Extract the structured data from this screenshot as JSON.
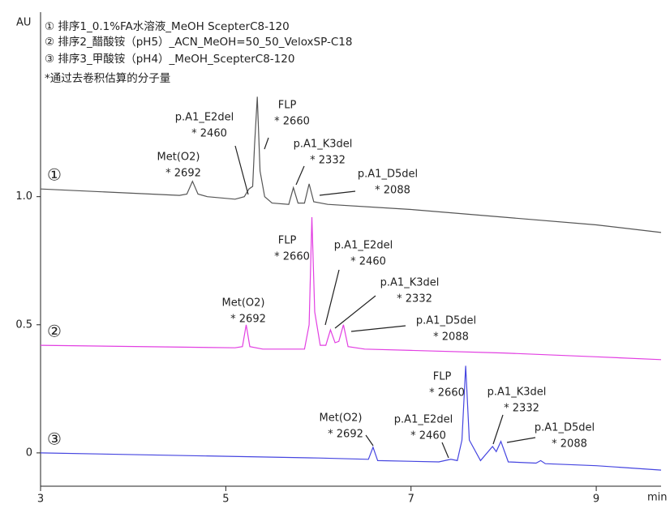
{
  "chart_data": {
    "type": "line",
    "y_label": "AU",
    "x_label": "min",
    "note": "*通过去卷积估算的分子量",
    "xlim": [
      3,
      9.7
    ],
    "ylim": [
      -0.13,
      1.72
    ],
    "xticks": [
      3,
      5,
      7,
      9
    ],
    "yticks": [
      0,
      0.5,
      {
        "value": 1,
        "label": "1.0"
      }
    ],
    "series": [
      {
        "name": "① 排序1_0.1%FA水溶液_MeOH ScepterC8-120",
        "marker": "①",
        "color": "#555555",
        "x": [
          3,
          4.5,
          4.58,
          4.64,
          4.7,
          4.8,
          5.1,
          5.2,
          5.25,
          5.29,
          5.31,
          5.34,
          5.37,
          5.42,
          5.5,
          5.68,
          5.73,
          5.78,
          5.85,
          5.9,
          5.95,
          6.1,
          7,
          8,
          9,
          9.7
        ],
        "values": [
          1.03,
          1.005,
          1.01,
          1.06,
          1.01,
          1.0,
          0.99,
          1.0,
          1.03,
          1.04,
          1.2,
          1.39,
          1.1,
          1.0,
          0.975,
          0.97,
          1.035,
          0.975,
          0.975,
          1.05,
          0.98,
          0.97,
          0.95,
          0.92,
          0.89,
          0.86
        ],
        "annotations": [
          {
            "label": "Met(O2)",
            "mw": "* 2692"
          },
          {
            "label": "p.A1_E2del",
            "mw": "* 2460"
          },
          {
            "label": "FLP",
            "mw": "* 2660"
          },
          {
            "label": "p.A1_K3del",
            "mw": "* 2332"
          },
          {
            "label": "p.A1_D5del",
            "mw": "* 2088"
          }
        ]
      },
      {
        "name": "② 排序2_醋酸铵（pH5）_ACN_MeOH=50_50_VeloxSP-C18",
        "marker": "②",
        "color": "#e23fe2",
        "x": [
          3,
          5.1,
          5.18,
          5.22,
          5.26,
          5.4,
          5.85,
          5.9,
          5.93,
          5.96,
          6.02,
          6.08,
          6.13,
          6.18,
          6.22,
          6.27,
          6.32,
          6.5,
          7,
          8,
          9,
          9.7
        ],
        "values": [
          0.42,
          0.41,
          0.415,
          0.5,
          0.415,
          0.405,
          0.405,
          0.5,
          0.92,
          0.55,
          0.42,
          0.42,
          0.48,
          0.43,
          0.435,
          0.5,
          0.415,
          0.405,
          0.4,
          0.39,
          0.375,
          0.364
        ],
        "annotations": [
          {
            "label": "Met(O2)",
            "mw": "* 2692"
          },
          {
            "label": "FLP",
            "mw": "* 2660"
          },
          {
            "label": "p.A1_E2del",
            "mw": "* 2460"
          },
          {
            "label": "p.A1_K3del",
            "mw": "* 2332"
          },
          {
            "label": "p.A1_D5del",
            "mw": "* 2088"
          }
        ]
      },
      {
        "name": "③ 排序3_甲酸铵（pH4）_MeOH_ScepterC8-120",
        "marker": "③",
        "color": "#4545e0",
        "x": [
          3,
          6,
          6.54,
          6.59,
          6.64,
          7.3,
          7.43,
          7.5,
          7.55,
          7.59,
          7.63,
          7.75,
          7.88,
          7.92,
          7.97,
          8.05,
          8.35,
          8.4,
          8.45,
          9,
          9.7
        ],
        "values": [
          0,
          -0.02,
          -0.025,
          0.022,
          -0.03,
          -0.035,
          -0.025,
          -0.03,
          0.05,
          0.34,
          0.05,
          -0.03,
          0.025,
          0.005,
          0.045,
          -0.035,
          -0.04,
          -0.03,
          -0.042,
          -0.05,
          -0.067
        ],
        "annotations": [
          {
            "label": "Met(O2)",
            "mw": "* 2692"
          },
          {
            "label": "p.A1_E2del",
            "mw": "* 2460"
          },
          {
            "label": "FLP",
            "mw": "* 2660"
          },
          {
            "label": "p.A1_K3del",
            "mw": "* 2332"
          },
          {
            "label": "p.A1_D5del",
            "mw": "* 2088"
          }
        ]
      }
    ]
  }
}
